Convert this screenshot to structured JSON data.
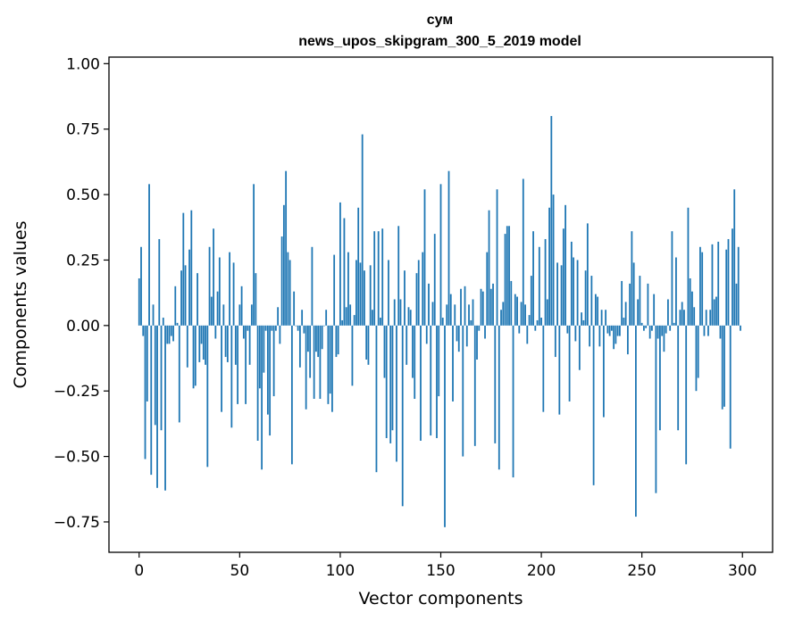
{
  "chart_data": {
    "type": "bar",
    "title_line1": "сум",
    "title_line2": "news_upos_skipgram_300_5_2019 model",
    "xlabel": "Vector components",
    "ylabel": "Components values",
    "xlim": [
      -15,
      315
    ],
    "ylim": [
      -0.866,
      1.025
    ],
    "x_ticks": [
      0,
      50,
      100,
      150,
      200,
      250,
      300
    ],
    "x_tick_labels": [
      "0",
      "50",
      "100",
      "150",
      "200",
      "250",
      "300"
    ],
    "y_ticks": [
      1.0,
      0.75,
      0.5,
      0.25,
      0.0,
      -0.25,
      -0.5,
      -0.75
    ],
    "y_tick_labels": [
      "1.00",
      "0.75",
      "0.50",
      "0.25",
      "0.00",
      "−0.25",
      "−0.50",
      "−0.75"
    ],
    "bar_color": "#1f77b4",
    "values": [
      0.18,
      0.3,
      -0.04,
      -0.51,
      -0.29,
      0.54,
      -0.57,
      0.08,
      -0.38,
      -0.62,
      0.33,
      -0.4,
      0.03,
      -0.63,
      -0.07,
      -0.07,
      -0.04,
      -0.06,
      0.15,
      0.01,
      -0.37,
      0.21,
      0.43,
      0.23,
      -0.16,
      0.29,
      0.44,
      -0.24,
      -0.23,
      0.2,
      -0.14,
      -0.07,
      -0.13,
      -0.15,
      -0.54,
      0.3,
      0.11,
      0.37,
      -0.05,
      0.13,
      0.26,
      -0.33,
      0.08,
      -0.12,
      -0.14,
      0.28,
      -0.39,
      0.24,
      -0.15,
      -0.3,
      0.08,
      0.15,
      -0.05,
      -0.3,
      -0.02,
      -0.15,
      0.08,
      0.54,
      0.2,
      -0.44,
      -0.24,
      -0.55,
      -0.18,
      -0.02,
      -0.34,
      -0.42,
      -0.02,
      -0.27,
      -0.02,
      0.07,
      -0.07,
      0.34,
      0.46,
      0.59,
      0.28,
      0.25,
      -0.53,
      0.13,
      0.0,
      -0.02,
      -0.16,
      0.06,
      -0.03,
      -0.32,
      -0.1,
      -0.2,
      0.3,
      -0.28,
      -0.1,
      -0.12,
      -0.28,
      -0.09,
      0.0,
      0.06,
      -0.3,
      -0.26,
      -0.33,
      0.27,
      -0.12,
      -0.11,
      0.47,
      0.02,
      0.41,
      0.07,
      0.28,
      0.08,
      -0.23,
      0.04,
      0.25,
      0.45,
      0.24,
      0.73,
      0.21,
      -0.13,
      -0.15,
      0.23,
      0.06,
      0.36,
      -0.56,
      0.36,
      0.03,
      0.37,
      -0.2,
      -0.43,
      0.25,
      -0.45,
      -0.4,
      0.1,
      -0.52,
      0.38,
      0.1,
      -0.69,
      0.21,
      -0.15,
      0.07,
      0.06,
      -0.2,
      -0.28,
      0.2,
      0.25,
      -0.44,
      0.28,
      0.52,
      -0.07,
      0.16,
      -0.42,
      0.09,
      0.35,
      -0.43,
      -0.27,
      0.54,
      0.03,
      -0.77,
      0.08,
      0.59,
      0.12,
      -0.29,
      0.08,
      -0.06,
      -0.1,
      0.14,
      -0.5,
      0.15,
      -0.08,
      0.08,
      0.02,
      0.1,
      -0.46,
      -0.13,
      -0.02,
      0.14,
      0.13,
      -0.05,
      0.28,
      0.44,
      0.14,
      0.16,
      -0.45,
      0.52,
      -0.55,
      0.06,
      0.09,
      0.35,
      0.38,
      0.38,
      0.17,
      -0.58,
      0.12,
      0.11,
      -0.03,
      0.09,
      0.56,
      0.08,
      -0.07,
      0.04,
      0.19,
      0.36,
      -0.02,
      0.02,
      0.3,
      0.03,
      -0.33,
      0.33,
      0.1,
      0.45,
      0.8,
      0.5,
      -0.12,
      0.24,
      -0.34,
      0.23,
      0.37,
      0.46,
      -0.03,
      -0.29,
      0.32,
      0.26,
      -0.06,
      0.25,
      -0.17,
      0.05,
      0.02,
      0.21,
      0.39,
      -0.08,
      0.19,
      -0.61,
      0.12,
      0.11,
      -0.08,
      0.06,
      -0.35,
      0.06,
      -0.03,
      -0.04,
      -0.02,
      -0.09,
      -0.07,
      -0.04,
      -0.04,
      0.17,
      0.03,
      0.09,
      -0.11,
      0.16,
      0.36,
      0.24,
      -0.73,
      0.1,
      0.19,
      0.01,
      -0.02,
      -0.01,
      0.16,
      -0.05,
      -0.02,
      0.12,
      -0.64,
      -0.05,
      -0.4,
      -0.04,
      -0.1,
      -0.03,
      0.1,
      -0.02,
      0.36,
      0.01,
      0.26,
      -0.4,
      0.06,
      0.09,
      0.06,
      -0.53,
      0.45,
      0.18,
      0.13,
      0.07,
      -0.25,
      -0.2,
      0.3,
      0.28,
      -0.04,
      0.06,
      -0.04,
      0.06,
      0.31,
      0.1,
      0.11,
      0.32,
      -0.05,
      -0.32,
      -0.31,
      0.29,
      0.33,
      -0.47,
      0.37,
      0.52,
      0.16,
      0.3,
      -0.02
    ]
  }
}
